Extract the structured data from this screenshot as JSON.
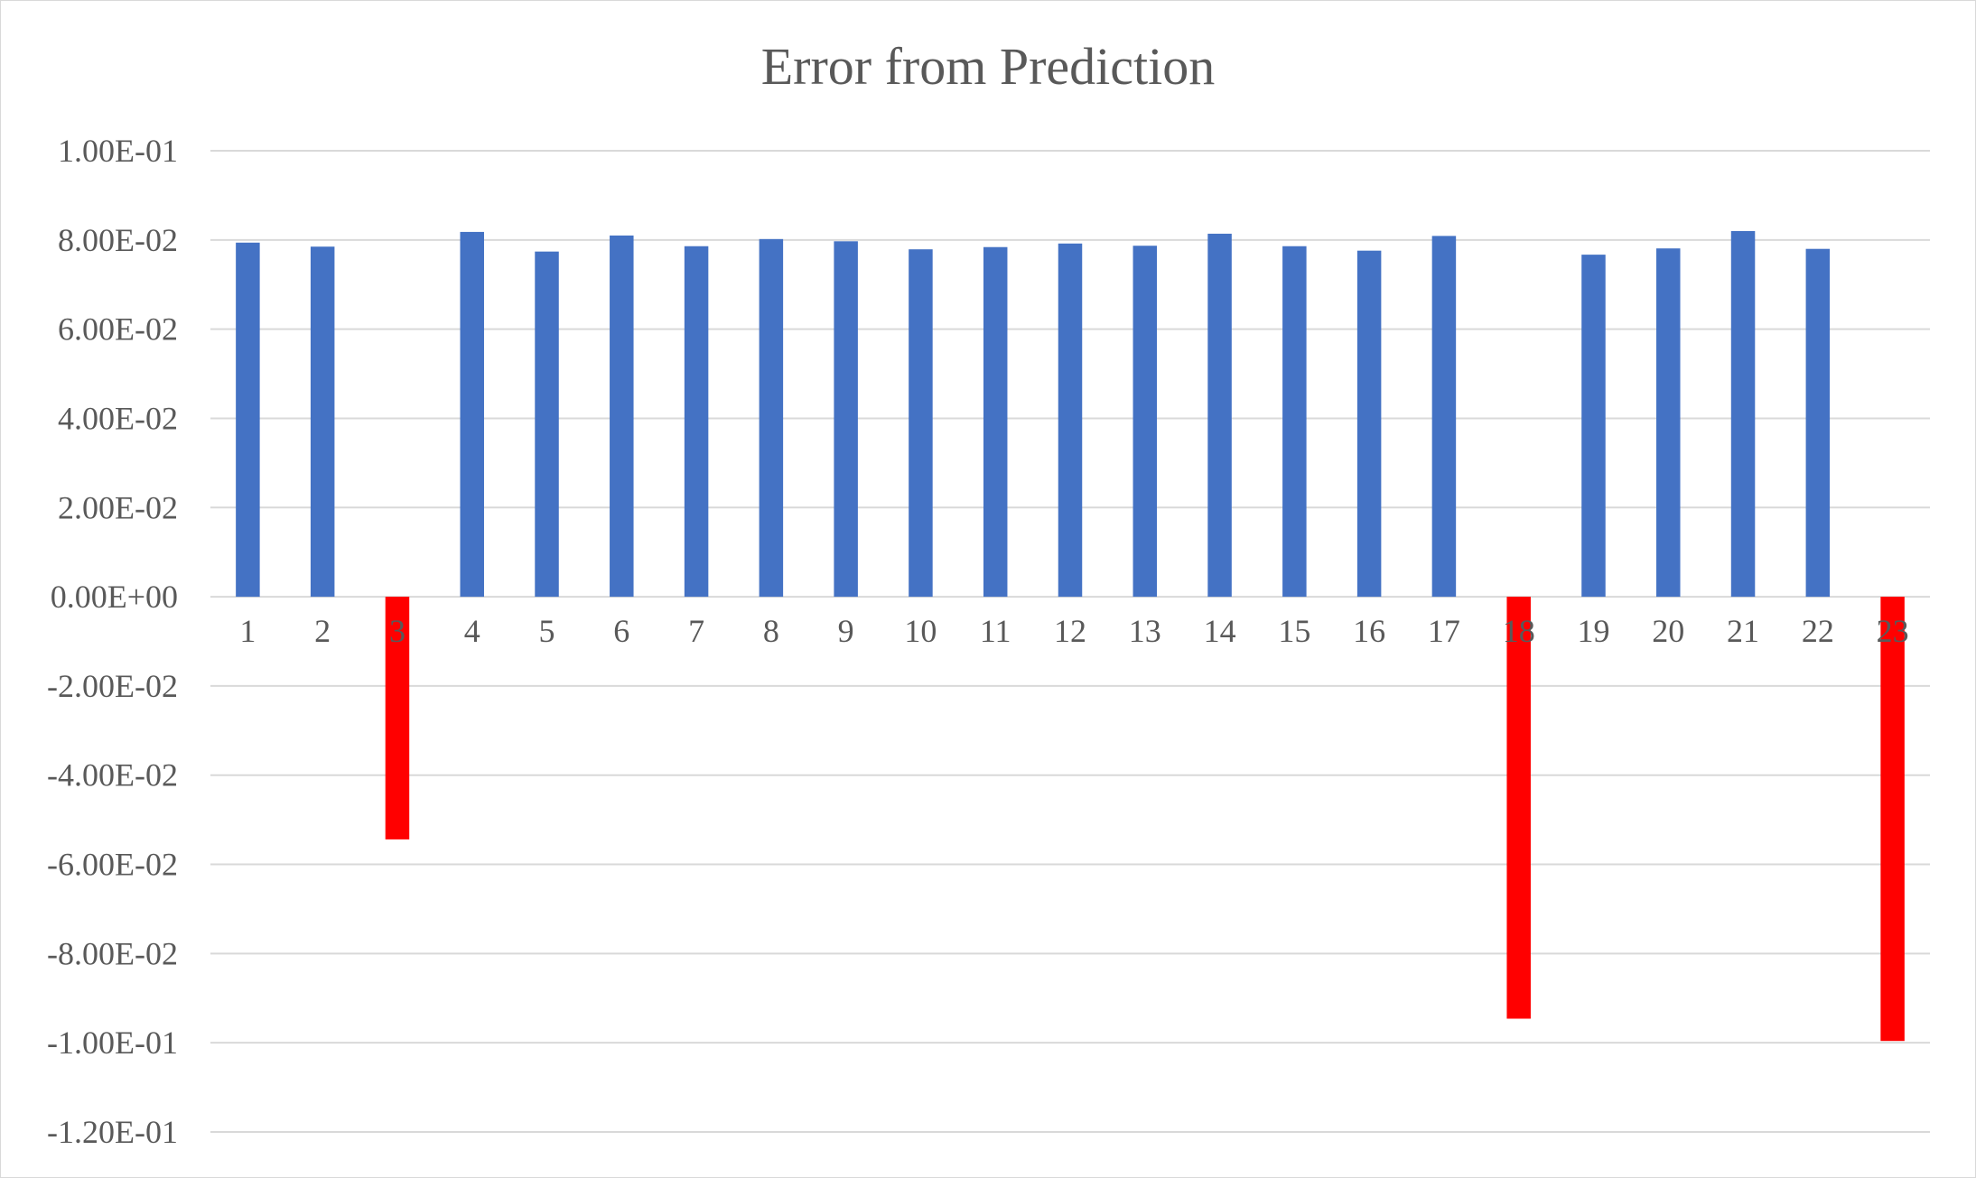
{
  "colors": {
    "positive_bar": "#4472C4",
    "negative_bar": "#FF0000",
    "gridline": "#D9D9D9",
    "text": "#595959",
    "background": "#FFFFFF"
  },
  "chart_data": {
    "type": "bar",
    "title": "Error from Prediction",
    "xlabel": "",
    "ylabel": "",
    "ylim": [
      -0.12,
      0.1
    ],
    "ytick_values": [
      0.1,
      0.08,
      0.06,
      0.04,
      0.02,
      0.0,
      -0.02,
      -0.04,
      -0.06,
      -0.08,
      -0.1,
      -0.12
    ],
    "ytick_labels": [
      "1.00E-01",
      "8.00E-02",
      "6.00E-02",
      "4.00E-02",
      "2.00E-02",
      "0.00E+00",
      "-2.00E-02",
      "-4.00E-02",
      "-6.00E-02",
      "-8.00E-02",
      "-1.00E-01",
      "-1.20E-01"
    ],
    "categories": [
      "1",
      "2",
      "3",
      "4",
      "5",
      "6",
      "7",
      "8",
      "9",
      "10",
      "11",
      "12",
      "13",
      "14",
      "15",
      "16",
      "17",
      "18",
      "19",
      "20",
      "21",
      "22",
      "23"
    ],
    "values": [
      0.0794,
      0.0785,
      -0.0544,
      0.0818,
      0.0774,
      0.081,
      0.0786,
      0.0802,
      0.0797,
      0.0779,
      0.0784,
      0.0792,
      0.0787,
      0.0814,
      0.0786,
      0.0776,
      0.0809,
      -0.0946,
      0.0767,
      0.0781,
      0.082,
      0.078,
      -0.0996
    ],
    "grid": true,
    "legend": "none"
  }
}
